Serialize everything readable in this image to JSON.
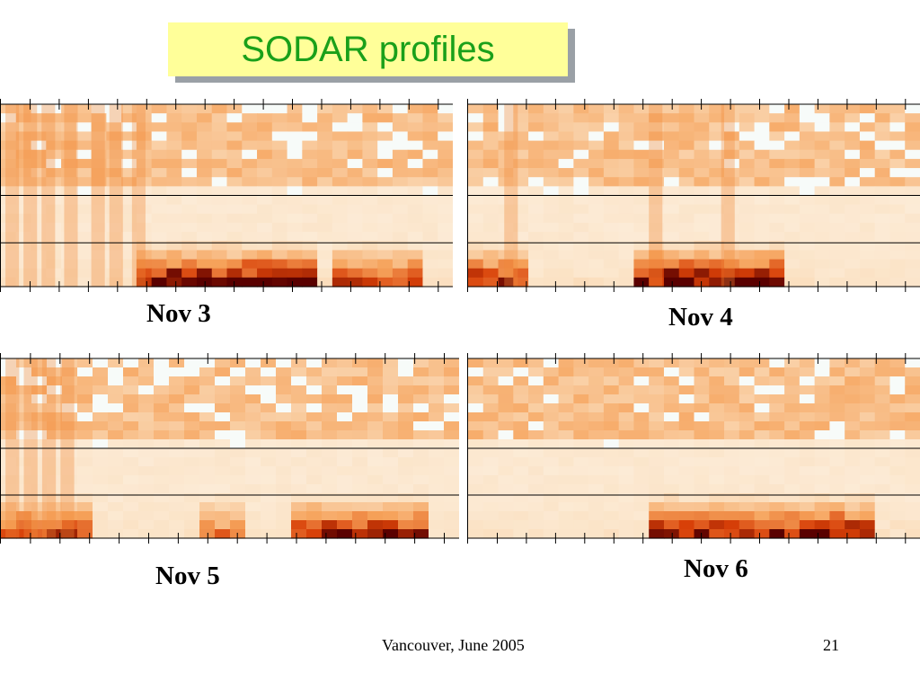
{
  "slide": {
    "title": "SODAR profiles",
    "footer_text": "Vancouver, June 2005",
    "page_number": "21"
  },
  "chart_data": [
    {
      "type": "heatmap",
      "title": "",
      "caption": "Nov 3",
      "grid": false,
      "colors": [
        "#ffffff",
        "#fbe3c6",
        "#f6a25a",
        "#d84008",
        "#5a0000"
      ]
    },
    {
      "type": "heatmap",
      "title": "",
      "caption": "Nov 4",
      "grid": false,
      "colors": [
        "#ffffff",
        "#fbe3c6",
        "#f6a25a",
        "#d84008",
        "#5a0000"
      ]
    },
    {
      "type": "heatmap",
      "title": "",
      "caption": "Nov 5",
      "grid": false,
      "colors": [
        "#ffffff",
        "#fbe3c6",
        "#f6a25a",
        "#d84008",
        "#5a0000"
      ]
    },
    {
      "type": "heatmap",
      "title": "",
      "caption": "Nov 6",
      "grid": false,
      "colors": [
        "#ffffff",
        "#fbe3c6",
        "#f6a25a",
        "#d84008",
        "#5a0000"
      ]
    }
  ]
}
